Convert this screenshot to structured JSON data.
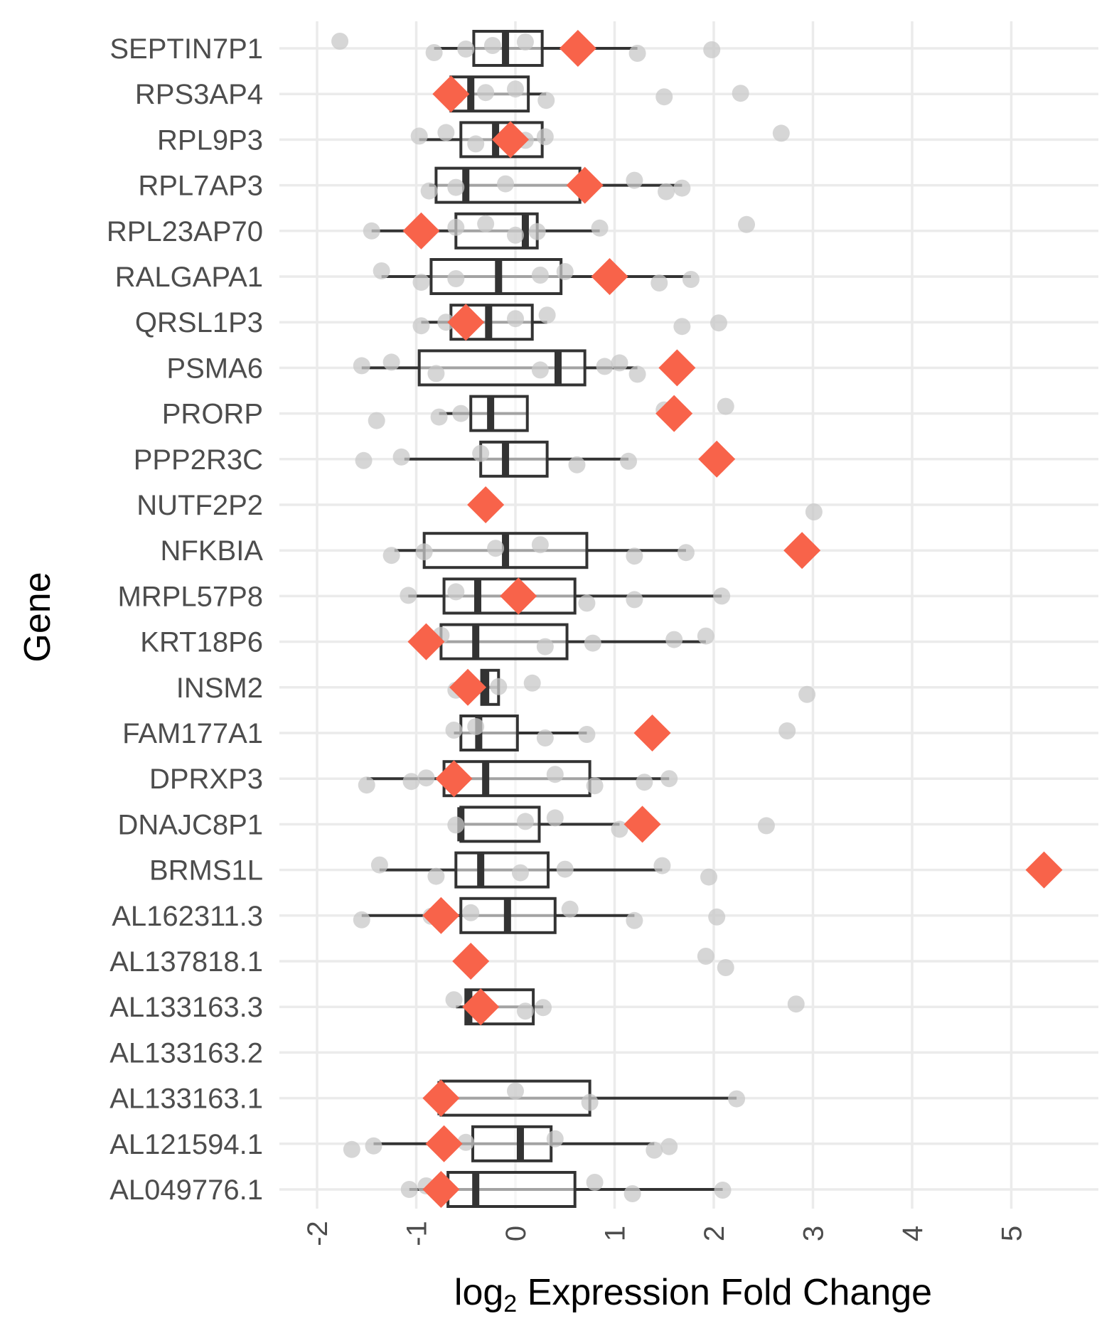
{
  "chart_data": {
    "type": "boxplot",
    "xlabel": "log₂ Expression Fold Change",
    "xlabel_main": "log",
    "xlabel_sub": "2",
    "xlabel_rest": " Expression Fold Change",
    "ylabel": "Gene",
    "xlim": [
      -2.4,
      5.8
    ],
    "x_ticks": [
      -2,
      -1,
      0,
      1,
      2,
      3,
      4,
      5
    ],
    "x_tick_labels": [
      "-2",
      "-1",
      "0",
      "1",
      "2",
      "3",
      "4",
      "5"
    ],
    "grid": true,
    "colors": {
      "diamond": "#f8634a",
      "points": "#c8c8c8",
      "box": "#333333"
    },
    "genes": [
      {
        "name": "SEPTIN7P1",
        "box": {
          "wl": -0.82,
          "q1": -0.42,
          "med": -0.1,
          "q3": 0.27,
          "wh": 1.23
        },
        "diamond": 0.63,
        "points": [
          -1.77,
          -0.82,
          -0.5,
          -0.23,
          0.1,
          1.23,
          1.98
        ]
      },
      {
        "name": "RPS3AP4",
        "box": {
          "wl": -0.6,
          "q1": -0.65,
          "med": -0.45,
          "q3": 0.13,
          "wh": 0.31
        },
        "diamond": -0.65,
        "points": [
          -0.6,
          -0.3,
          0.0,
          0.31,
          1.5,
          2.27
        ]
      },
      {
        "name": "RPL9P3",
        "box": {
          "wl": -0.97,
          "q1": -0.55,
          "med": -0.2,
          "q3": 0.27,
          "wh": 0.3
        },
        "diamond": -0.05,
        "points": [
          -0.97,
          -0.7,
          -0.4,
          0.1,
          0.3,
          2.68
        ]
      },
      {
        "name": "RPL7AP3",
        "box": {
          "wl": -0.87,
          "q1": -0.8,
          "med": -0.5,
          "q3": 0.65,
          "wh": 1.68
        },
        "diamond": 0.7,
        "points": [
          -0.87,
          -0.6,
          -0.1,
          1.2,
          1.52,
          1.68
        ]
      },
      {
        "name": "RPL23AP70",
        "box": {
          "wl": -1.45,
          "q1": -0.6,
          "med": 0.1,
          "q3": 0.22,
          "wh": 0.85
        },
        "diamond": -0.95,
        "points": [
          -1.45,
          -0.6,
          -0.3,
          0.0,
          0.22,
          0.85,
          2.33
        ]
      },
      {
        "name": "RALGAPA1",
        "box": {
          "wl": -1.35,
          "q1": -0.85,
          "med": -0.17,
          "q3": 0.46,
          "wh": 1.77
        },
        "diamond": 0.95,
        "points": [
          -1.35,
          -0.95,
          -0.6,
          0.25,
          0.5,
          1.45,
          1.77
        ]
      },
      {
        "name": "QRSL1P3",
        "box": {
          "wl": -0.95,
          "q1": -0.65,
          "med": -0.27,
          "q3": 0.17,
          "wh": 0.32
        },
        "diamond": -0.5,
        "points": [
          -0.95,
          -0.7,
          0.0,
          0.32,
          1.68,
          2.05
        ]
      },
      {
        "name": "PSMA6",
        "box": {
          "wl": -1.55,
          "q1": -0.97,
          "med": 0.43,
          "q3": 0.7,
          "wh": 1.23
        },
        "diamond": 1.63,
        "points": [
          -1.55,
          -1.25,
          -0.8,
          0.25,
          0.9,
          1.05,
          1.23
        ]
      },
      {
        "name": "PRORP",
        "box": {
          "wl": -0.77,
          "q1": -0.45,
          "med": -0.25,
          "q3": 0.12,
          "wh": 0.12
        },
        "diamond": 1.6,
        "points": [
          -1.4,
          -0.77,
          -0.55,
          1.5,
          2.12
        ]
      },
      {
        "name": "PPP2R3C",
        "box": {
          "wl": -1.12,
          "q1": -0.35,
          "med": -0.1,
          "q3": 0.32,
          "wh": 1.14
        },
        "diamond": 2.03,
        "points": [
          -1.53,
          -1.15,
          -0.35,
          0.62,
          1.14
        ]
      },
      {
        "name": "NUTF2P2",
        "box": null,
        "diamond": -0.3,
        "points": [
          -0.3,
          3.01
        ]
      },
      {
        "name": "NFKBIA",
        "box": {
          "wl": -1.22,
          "q1": -0.92,
          "med": -0.1,
          "q3": 0.72,
          "wh": 1.72
        },
        "diamond": 2.89,
        "points": [
          -1.25,
          -0.92,
          -0.2,
          0.25,
          1.2,
          1.72
        ]
      },
      {
        "name": "MRPL57P8",
        "box": {
          "wl": -1.08,
          "q1": -0.72,
          "med": -0.38,
          "q3": 0.6,
          "wh": 2.08
        },
        "diamond": 0.03,
        "points": [
          -1.08,
          -0.6,
          0.72,
          1.2,
          2.08
        ]
      },
      {
        "name": "KRT18P6",
        "box": {
          "wl": -0.75,
          "q1": -0.75,
          "med": -0.4,
          "q3": 0.52,
          "wh": 1.92
        },
        "diamond": -0.9,
        "points": [
          -0.75,
          0.3,
          0.78,
          1.6,
          1.92
        ]
      },
      {
        "name": "INSM2",
        "box": {
          "wl": -0.34,
          "q1": -0.34,
          "med": -0.3,
          "q3": -0.17,
          "wh": -0.17
        },
        "diamond": -0.48,
        "points": [
          -0.6,
          -0.17,
          0.17,
          2.94
        ]
      },
      {
        "name": "FAM177A1",
        "box": {
          "wl": -0.62,
          "q1": -0.55,
          "med": -0.37,
          "q3": 0.02,
          "wh": 0.72
        },
        "diamond": 1.38,
        "points": [
          -0.62,
          -0.4,
          0.3,
          0.72,
          2.74
        ]
      },
      {
        "name": "DPRXP3",
        "box": {
          "wl": -1.5,
          "q1": -0.72,
          "med": -0.3,
          "q3": 0.75,
          "wh": 1.55
        },
        "diamond": -0.62,
        "points": [
          -1.5,
          -1.05,
          -0.9,
          0.4,
          0.8,
          1.3,
          1.55
        ]
      },
      {
        "name": "DNAJC8P1",
        "box": {
          "wl": -0.55,
          "q1": -0.55,
          "med": -0.55,
          "q3": 0.24,
          "wh": 1.05
        },
        "diamond": 1.28,
        "points": [
          -0.6,
          0.1,
          0.4,
          1.05,
          2.53
        ]
      },
      {
        "name": "BRMS1L",
        "box": {
          "wl": -1.37,
          "q1": -0.6,
          "med": -0.35,
          "q3": 0.33,
          "wh": 1.48
        },
        "diamond": 5.33,
        "points": [
          -1.37,
          -0.8,
          0.05,
          0.5,
          1.48,
          1.95
        ]
      },
      {
        "name": "AL162311.3",
        "box": {
          "wl": -1.55,
          "q1": -0.55,
          "med": -0.08,
          "q3": 0.4,
          "wh": 1.2
        },
        "diamond": -0.75,
        "points": [
          -1.55,
          -0.85,
          -0.45,
          0.55,
          1.2,
          2.03
        ]
      },
      {
        "name": "AL137818.1",
        "box": null,
        "diamond": -0.45,
        "points": [
          -0.45,
          1.92,
          2.12
        ]
      },
      {
        "name": "AL133163.3",
        "box": {
          "wl": -0.6,
          "q1": -0.5,
          "med": -0.47,
          "q3": 0.18,
          "wh": 0.28
        },
        "diamond": -0.35,
        "points": [
          -0.62,
          0.1,
          0.28,
          2.83
        ]
      },
      {
        "name": "AL133163.2",
        "box": null,
        "diamond": null,
        "points": []
      },
      {
        "name": "AL133163.1",
        "box": {
          "wl": -0.75,
          "q1": -0.75,
          "med": -0.75,
          "q3": 0.75,
          "wh": 2.23
        },
        "diamond": -0.75,
        "points": [
          -0.75,
          0.0,
          0.75,
          2.23
        ]
      },
      {
        "name": "AL121594.1",
        "box": {
          "wl": -1.43,
          "q1": -0.43,
          "med": 0.05,
          "q3": 0.36,
          "wh": 1.4
        },
        "diamond": -0.72,
        "points": [
          -1.65,
          -1.43,
          -0.5,
          0.4,
          1.4,
          1.55
        ]
      },
      {
        "name": "AL049776.1",
        "box": {
          "wl": -1.07,
          "q1": -0.68,
          "med": -0.4,
          "q3": 0.6,
          "wh": 2.09
        },
        "diamond": -0.75,
        "points": [
          -1.07,
          -0.9,
          0.8,
          1.18,
          2.09
        ]
      }
    ]
  }
}
